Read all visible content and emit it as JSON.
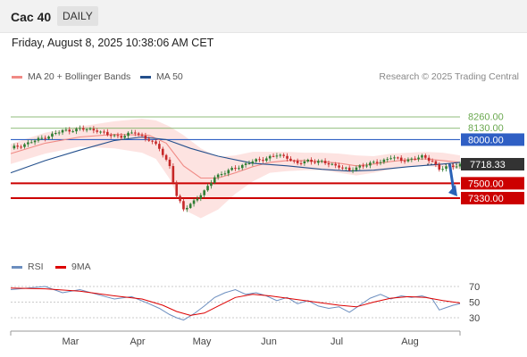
{
  "header": {
    "instrument": "Cac 40",
    "timeframe": "DAILY"
  },
  "timestamp": "Friday, August 8, 2025 10:38:06 AM CET",
  "copyright": "Research © 2025 Trading Central",
  "colors": {
    "upper_resistance": "#6aa84f",
    "pivot": "#2f5fc4",
    "support": "#cc0000",
    "price_box": "#333333",
    "bollinger_fill": "#fde0de",
    "ma20": "#f08a85",
    "ma50": "#234f8c",
    "rsi": "#6c8ebf",
    "rsi_ma": "#dd0000",
    "arrow": "#2a62b7"
  },
  "chart_data": [
    {
      "type": "candlestick",
      "legend": [
        {
          "name": "MA 20 + Bollinger Bands",
          "color": "#f08a85"
        },
        {
          "name": "MA 50",
          "color": "#234f8c"
        }
      ],
      "x_tick_labels": [
        "Mar",
        "Apr",
        "May",
        "Jun",
        "Jul",
        "Aug"
      ],
      "levels": [
        {
          "value": 8260,
          "label": "8260.00",
          "kind": "resistance"
        },
        {
          "value": 8130,
          "label": "8130.00",
          "kind": "resistance"
        },
        {
          "value": 8000,
          "label": "8000.00",
          "kind": "pivot"
        },
        {
          "value": 7500,
          "label": "7500.00",
          "kind": "support"
        },
        {
          "value": 7330,
          "label": "7330.00",
          "kind": "support"
        }
      ],
      "last_price": {
        "value": 7718.33,
        "label": "7718.33"
      },
      "forecast_arrow": {
        "from": 7720,
        "to": 7350,
        "direction": "down"
      },
      "close_trend": [
        [
          0,
          7900
        ],
        [
          5,
          7960
        ],
        [
          10,
          8030
        ],
        [
          15,
          8100
        ],
        [
          20,
          8120
        ],
        [
          25,
          8110
        ],
        [
          28,
          8050
        ],
        [
          32,
          8040
        ],
        [
          36,
          8080
        ],
        [
          40,
          8000
        ],
        [
          43,
          7900
        ],
        [
          46,
          7700
        ],
        [
          48,
          7350
        ],
        [
          50,
          7200
        ],
        [
          53,
          7300
        ],
        [
          56,
          7400
        ],
        [
          59,
          7580
        ],
        [
          62,
          7620
        ],
        [
          65,
          7680
        ],
        [
          68,
          7720
        ],
        [
          71,
          7760
        ],
        [
          74,
          7790
        ],
        [
          77,
          7820
        ],
        [
          80,
          7800
        ],
        [
          83,
          7720
        ],
        [
          86,
          7760
        ],
        [
          89,
          7750
        ],
        [
          92,
          7720
        ],
        [
          95,
          7700
        ],
        [
          98,
          7640
        ],
        [
          101,
          7700
        ],
        [
          104,
          7720
        ],
        [
          107,
          7750
        ],
        [
          110,
          7800
        ],
        [
          113,
          7760
        ],
        [
          116,
          7780
        ],
        [
          119,
          7800
        ],
        [
          122,
          7760
        ],
        [
          124,
          7660
        ],
        [
          126,
          7680
        ],
        [
          128,
          7700
        ],
        [
          130,
          7718
        ]
      ],
      "ma20": [
        [
          0,
          7840
        ],
        [
          10,
          7960
        ],
        [
          20,
          8030
        ],
        [
          30,
          8060
        ],
        [
          40,
          8050
        ],
        [
          45,
          7960
        ],
        [
          50,
          7700
        ],
        [
          55,
          7560
        ],
        [
          60,
          7560
        ],
        [
          65,
          7620
        ],
        [
          70,
          7690
        ],
        [
          75,
          7740
        ],
        [
          80,
          7760
        ],
        [
          85,
          7760
        ],
        [
          90,
          7750
        ],
        [
          95,
          7730
        ],
        [
          100,
          7700
        ],
        [
          105,
          7720
        ],
        [
          110,
          7750
        ],
        [
          115,
          7770
        ],
        [
          120,
          7780
        ],
        [
          125,
          7760
        ],
        [
          130,
          7740
        ]
      ],
      "ma50": [
        [
          0,
          7620
        ],
        [
          10,
          7760
        ],
        [
          20,
          7880
        ],
        [
          30,
          7990
        ],
        [
          38,
          8030
        ],
        [
          45,
          8000
        ],
        [
          52,
          7900
        ],
        [
          60,
          7810
        ],
        [
          70,
          7730
        ],
        [
          80,
          7700
        ],
        [
          90,
          7660
        ],
        [
          98,
          7640
        ],
        [
          105,
          7650
        ],
        [
          115,
          7690
        ],
        [
          125,
          7720
        ],
        [
          130,
          7740
        ]
      ],
      "bollinger_upper": [
        [
          0,
          7950
        ],
        [
          10,
          8080
        ],
        [
          20,
          8150
        ],
        [
          30,
          8210
        ],
        [
          38,
          8240
        ],
        [
          42,
          8220
        ],
        [
          46,
          8150
        ],
        [
          50,
          8050
        ],
        [
          55,
          7900
        ],
        [
          60,
          7800
        ],
        [
          65,
          7820
        ],
        [
          70,
          7860
        ],
        [
          75,
          7860
        ],
        [
          80,
          7860
        ],
        [
          85,
          7850
        ],
        [
          90,
          7850
        ],
        [
          95,
          7840
        ],
        [
          100,
          7820
        ],
        [
          105,
          7810
        ],
        [
          110,
          7840
        ],
        [
          115,
          7850
        ],
        [
          120,
          7860
        ],
        [
          125,
          7850
        ],
        [
          130,
          7820
        ]
      ],
      "bollinger_lower": [
        [
          0,
          7720
        ],
        [
          10,
          7840
        ],
        [
          20,
          7920
        ],
        [
          30,
          7900
        ],
        [
          38,
          7850
        ],
        [
          42,
          7780
        ],
        [
          46,
          7550
        ],
        [
          50,
          7200
        ],
        [
          55,
          7100
        ],
        [
          60,
          7200
        ],
        [
          65,
          7380
        ],
        [
          70,
          7520
        ],
        [
          75,
          7620
        ],
        [
          80,
          7640
        ],
        [
          85,
          7650
        ],
        [
          90,
          7650
        ],
        [
          95,
          7620
        ],
        [
          100,
          7590
        ],
        [
          105,
          7620
        ],
        [
          110,
          7660
        ],
        [
          115,
          7690
        ],
        [
          120,
          7700
        ],
        [
          125,
          7680
        ],
        [
          130,
          7660
        ]
      ]
    },
    {
      "type": "line",
      "legend": [
        {
          "name": "RSI",
          "color": "#6c8ebf"
        },
        {
          "name": "9MA",
          "color": "#dd0000"
        }
      ],
      "y_tick_labels": [
        "70",
        "50",
        "30"
      ],
      "guides": [
        70,
        50,
        30
      ],
      "series": [
        {
          "name": "RSI",
          "values": [
            [
              0,
              66
            ],
            [
              5,
              68
            ],
            [
              10,
              70
            ],
            [
              15,
              62
            ],
            [
              20,
              66
            ],
            [
              25,
              60
            ],
            [
              30,
              54
            ],
            [
              35,
              57
            ],
            [
              40,
              48
            ],
            [
              43,
              42
            ],
            [
              46,
              34
            ],
            [
              48,
              30
            ],
            [
              50,
              27
            ],
            [
              53,
              35
            ],
            [
              56,
              45
            ],
            [
              59,
              56
            ],
            [
              62,
              62
            ],
            [
              65,
              66
            ],
            [
              68,
              60
            ],
            [
              71,
              62
            ],
            [
              74,
              58
            ],
            [
              77,
              52
            ],
            [
              80,
              56
            ],
            [
              83,
              48
            ],
            [
              86,
              52
            ],
            [
              89,
              45
            ],
            [
              92,
              42
            ],
            [
              95,
              44
            ],
            [
              98,
              37
            ],
            [
              101,
              46
            ],
            [
              104,
              55
            ],
            [
              107,
              60
            ],
            [
              110,
              54
            ],
            [
              113,
              58
            ],
            [
              116,
              56
            ],
            [
              119,
              58
            ],
            [
              122,
              54
            ],
            [
              124,
              40
            ],
            [
              126,
              43
            ],
            [
              128,
              46
            ],
            [
              130,
              48
            ]
          ]
        },
        {
          "name": "9MA",
          "values": [
            [
              0,
              68
            ],
            [
              10,
              67
            ],
            [
              20,
              64
            ],
            [
              30,
              58
            ],
            [
              38,
              54
            ],
            [
              44,
              46
            ],
            [
              48,
              38
            ],
            [
              52,
              33
            ],
            [
              56,
              36
            ],
            [
              60,
              45
            ],
            [
              65,
              56
            ],
            [
              70,
              60
            ],
            [
              75,
              58
            ],
            [
              80,
              55
            ],
            [
              85,
              52
            ],
            [
              90,
              49
            ],
            [
              95,
              46
            ],
            [
              100,
              44
            ],
            [
              105,
              50
            ],
            [
              110,
              55
            ],
            [
              115,
              57
            ],
            [
              120,
              56
            ],
            [
              125,
              52
            ],
            [
              130,
              49
            ]
          ]
        }
      ]
    }
  ]
}
